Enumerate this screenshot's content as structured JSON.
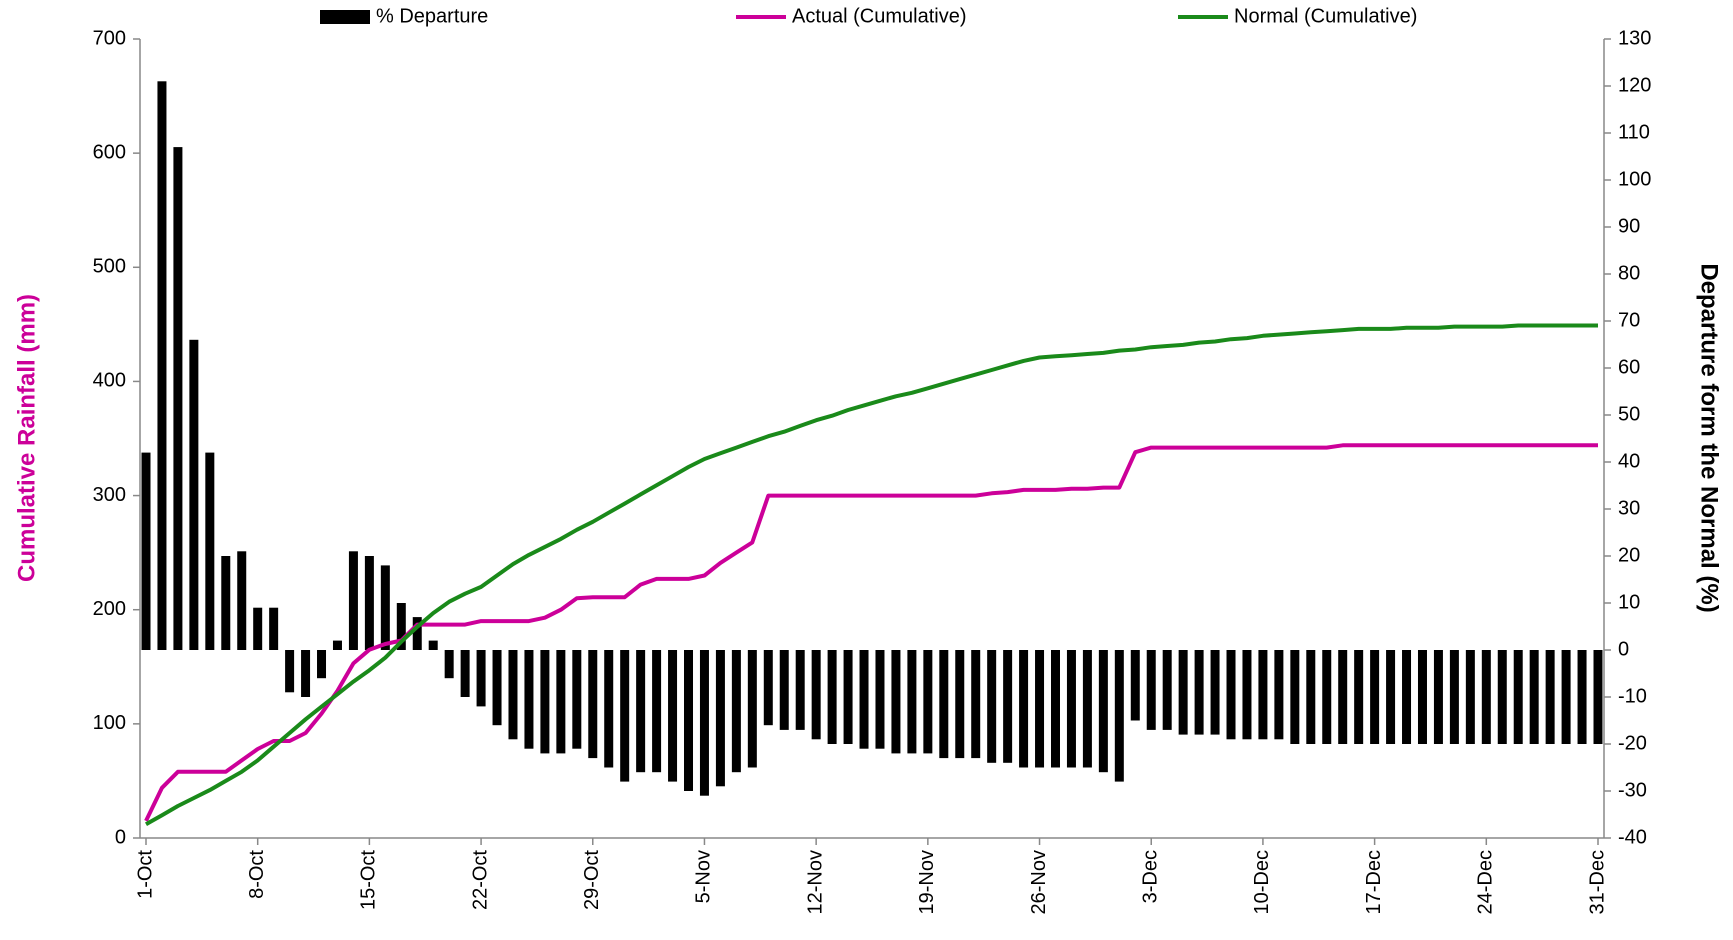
{
  "chart_data": {
    "type": "bar_line_dual_axis",
    "y_label": "Cumulative Rainfall (mm)",
    "y2_label": "Departure form the Normal (%)",
    "categories": [
      "1-Oct",
      null,
      null,
      null,
      null,
      null,
      null,
      "8-Oct",
      null,
      null,
      null,
      null,
      null,
      null,
      "15-Oct",
      null,
      null,
      null,
      null,
      null,
      null,
      "22-Oct",
      null,
      null,
      null,
      null,
      null,
      null,
      "29-Oct",
      null,
      null,
      null,
      null,
      null,
      null,
      "5-Nov",
      null,
      null,
      null,
      null,
      null,
      null,
      "12-Nov",
      null,
      null,
      null,
      null,
      null,
      null,
      "19-Nov",
      null,
      null,
      null,
      null,
      null,
      null,
      "26-Nov",
      null,
      null,
      null,
      null,
      null,
      null,
      "3-Dec",
      null,
      null,
      null,
      null,
      null,
      null,
      "10-Dec",
      null,
      null,
      null,
      null,
      null,
      null,
      "17-Dec",
      null,
      null,
      null,
      null,
      null,
      null,
      "24-Dec",
      null,
      null,
      null,
      null,
      null,
      null,
      "31-Dec"
    ],
    "series": [
      {
        "name": "% Departure",
        "type": "bar",
        "axis": "y2",
        "color": "#000000",
        "values": [
          42,
          121,
          107,
          66,
          42,
          20,
          21,
          9,
          9,
          -9,
          -10,
          -6,
          2,
          21,
          20,
          18,
          10,
          7,
          2,
          -6,
          -10,
          -12,
          -16,
          -19,
          -21,
          -22,
          -22,
          -21,
          -23,
          -25,
          -28,
          -26,
          -26,
          -28,
          -30,
          -31,
          -29,
          -26,
          -25,
          -16,
          -17,
          -17,
          -19,
          -20,
          -20,
          -21,
          -21,
          -22,
          -22,
          -22,
          -23,
          -23,
          -23,
          -24,
          -24,
          -25,
          -25,
          -25,
          -25,
          -25,
          -26,
          -28,
          -15,
          -17,
          -17,
          -18,
          -18,
          -18,
          -19,
          -19,
          -19,
          -19,
          -20,
          -20,
          -20,
          -20,
          -20,
          -20,
          -20,
          -20,
          -20,
          -20,
          -20,
          -20,
          -20,
          -20,
          -20,
          -20,
          -20,
          -20,
          -20,
          -20
        ]
      },
      {
        "name": "Actual (Cumulative)",
        "type": "line",
        "axis": "y",
        "color": "#cc0099",
        "values": [
          15,
          44,
          58,
          58,
          58,
          58,
          68,
          78,
          85,
          85,
          92,
          109,
          129,
          153,
          165,
          170,
          173,
          187,
          187,
          187,
          187,
          190,
          190,
          190,
          190,
          193,
          200,
          210,
          211,
          211,
          211,
          222,
          227,
          227,
          227,
          230,
          241,
          250,
          259,
          300,
          300,
          300,
          300,
          300,
          300,
          300,
          300,
          300,
          300,
          300,
          300,
          300,
          300,
          302,
          303,
          305,
          305,
          305,
          306,
          306,
          307,
          307,
          338,
          342,
          342,
          342,
          342,
          342,
          342,
          342,
          342,
          342,
          342,
          342,
          342,
          344,
          344,
          344,
          344,
          344,
          344,
          344,
          344,
          344,
          344,
          344,
          344,
          344,
          344,
          344,
          344,
          344
        ]
      },
      {
        "name": "Normal (Cumulative)",
        "type": "line",
        "axis": "y",
        "color": "#1a8a1a",
        "values": [
          12,
          20,
          28,
          35,
          42,
          50,
          58,
          68,
          80,
          92,
          104,
          115,
          126,
          137,
          147,
          158,
          172,
          185,
          197,
          207,
          214,
          220,
          230,
          240,
          248,
          255,
          262,
          270,
          277,
          285,
          293,
          301,
          309,
          317,
          325,
          332,
          337,
          342,
          347,
          352,
          356,
          361,
          366,
          370,
          375,
          379,
          383,
          387,
          390,
          394,
          398,
          402,
          406,
          410,
          414,
          418,
          421,
          422,
          423,
          424,
          425,
          427,
          428,
          430,
          431,
          432,
          434,
          435,
          437,
          438,
          440,
          441,
          442,
          443,
          444,
          445,
          446,
          446,
          446,
          447,
          447,
          447,
          448,
          448,
          448,
          448,
          449,
          449,
          449,
          449,
          449,
          449
        ]
      }
    ],
    "ylim": [
      0,
      700
    ],
    "yticks": [
      0,
      100,
      200,
      300,
      400,
      500,
      600,
      700
    ],
    "y2lim": [
      -40,
      130
    ],
    "y2ticks": [
      -40,
      -30,
      -20,
      -10,
      0,
      10,
      20,
      30,
      40,
      50,
      60,
      70,
      80,
      90,
      100,
      110,
      120,
      130
    ],
    "y_label_color": "#cc0099",
    "legend": "top"
  }
}
